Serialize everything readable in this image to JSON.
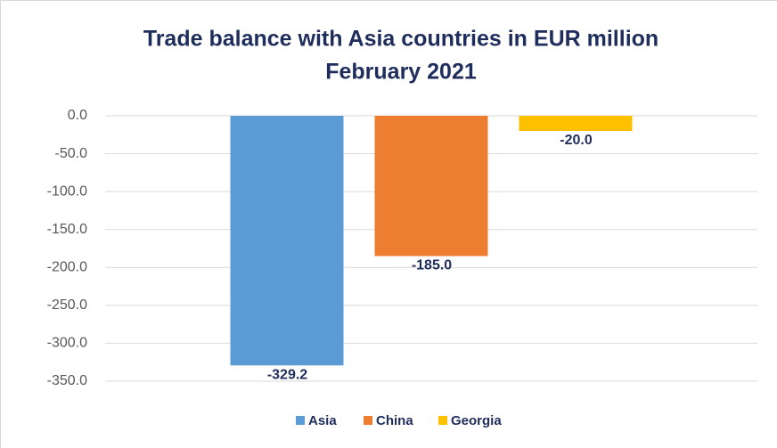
{
  "chart_data": {
    "type": "bar",
    "title": "Trade balance with Asia countries in EUR million",
    "subtitle": "February 2021",
    "categories": [
      null
    ],
    "series": [
      {
        "name": "Asia",
        "color": "#5b9bd5",
        "values": [
          -329.2
        ],
        "value_labels": [
          "-329.2"
        ]
      },
      {
        "name": "China",
        "color": "#ed7d31",
        "values": [
          -185
        ],
        "value_labels": [
          "-185.0"
        ]
      },
      {
        "name": "Georgia",
        "color": "#ffc000",
        "values": [
          -20
        ],
        "value_labels": [
          "-20.0"
        ]
      }
    ],
    "ylim": [
      -350,
      0
    ],
    "yticks": [
      {
        "value": 0,
        "label": "0.0"
      },
      {
        "value": -50,
        "label": "-50.0"
      },
      {
        "value": -100,
        "label": "-100.0"
      },
      {
        "value": -150,
        "label": "-150.0"
      },
      {
        "value": -200,
        "label": "-200.0"
      },
      {
        "value": -250,
        "label": "-250.0"
      },
      {
        "value": -300,
        "label": "-300.0"
      },
      {
        "value": -350,
        "label": "-350.0"
      }
    ],
    "grid": true,
    "legend": "bottom"
  }
}
